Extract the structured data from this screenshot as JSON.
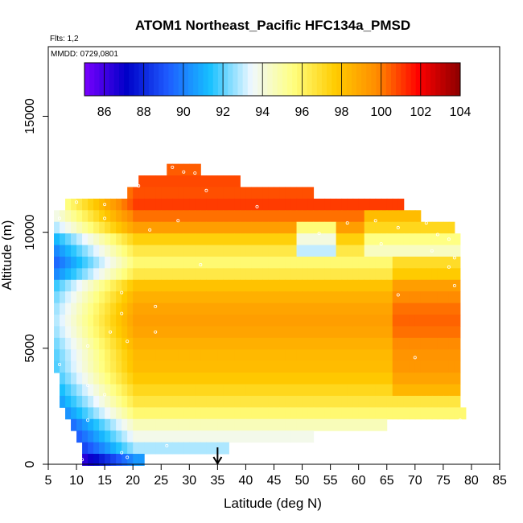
{
  "chart_data": {
    "type": "heatmap",
    "title": "ATOM1 Northeast_Pacific HFC134a_PMSD",
    "flights_note": "Flts: 1,2",
    "date_note": "MMDD: 0729,0801",
    "xlabel": "Latitude (deg N)",
    "ylabel": "Altitude (m)",
    "xlim": [
      5,
      85
    ],
    "ylim": [
      0,
      18000
    ],
    "x_ticks": [
      "5",
      "10",
      "15",
      "20",
      "25",
      "30",
      "35",
      "40",
      "45",
      "50",
      "55",
      "60",
      "65",
      "70",
      "75",
      "80",
      "85"
    ],
    "y_ticks": [
      "0",
      "5000",
      "10000",
      "15000"
    ],
    "colorbar": {
      "min": 85,
      "max": 104,
      "ticks": [
        "86",
        "88",
        "90",
        "92",
        "94",
        "96",
        "98",
        "100",
        "102",
        "104"
      ],
      "colors": [
        "#7a00ff",
        "#0000c8",
        "#1e5cff",
        "#16c0ff",
        "#f0f8ff",
        "#ffff80",
        "#ffcc00",
        "#ff8c00",
        "#ff0000",
        "#8b0000"
      ]
    },
    "arrow_marker_lat": 35,
    "grid": false,
    "field_summary": {
      "description_rows": [
        {
          "alt": 12700,
          "lat_range": [
            26,
            32
          ],
          "value": 100.5
        },
        {
          "alt": 12200,
          "lat_range": [
            21,
            39
          ],
          "value": 100.8
        },
        {
          "alt": 11700,
          "lat_range": [
            19,
            52
          ],
          "value": 100.7
        },
        {
          "alt": 11200,
          "lat_range": [
            8,
            68
          ],
          "value": 101.0
        },
        {
          "alt": 10700,
          "lat_range": [
            6,
            71
          ],
          "value": 100.2
        },
        {
          "alt": 10200,
          "lat_range": [
            6,
            77
          ],
          "value": 99.2
        },
        {
          "alt": 9700,
          "lat_range": [
            6,
            78
          ],
          "value": 97.5
        },
        {
          "alt": 9200,
          "lat_range": [
            6,
            78
          ],
          "value": 96.5
        },
        {
          "alt": 8700,
          "lat_range": [
            6,
            78
          ],
          "value": 95.8
        },
        {
          "alt": 8200,
          "lat_range": [
            6,
            78
          ],
          "value": 96.5
        },
        {
          "alt": 7700,
          "lat_range": [
            6,
            78
          ],
          "value": 98.0
        },
        {
          "alt": 7200,
          "lat_range": [
            6,
            78
          ],
          "value": 98.6
        },
        {
          "alt": 6700,
          "lat_range": [
            6,
            78
          ],
          "value": 99.0
        },
        {
          "alt": 6200,
          "lat_range": [
            6,
            78
          ],
          "value": 99.2
        },
        {
          "alt": 5700,
          "lat_range": [
            6,
            78
          ],
          "value": 99.0
        },
        {
          "alt": 5200,
          "lat_range": [
            6,
            78
          ],
          "value": 98.6
        },
        {
          "alt": 4700,
          "lat_range": [
            6,
            78
          ],
          "value": 98.3
        },
        {
          "alt": 4200,
          "lat_range": [
            6,
            78
          ],
          "value": 98.2
        },
        {
          "alt": 3700,
          "lat_range": [
            7,
            78
          ],
          "value": 97.8
        },
        {
          "alt": 3200,
          "lat_range": [
            7,
            78
          ],
          "value": 97.2
        },
        {
          "alt": 2700,
          "lat_range": [
            7,
            78
          ],
          "value": 96.6
        },
        {
          "alt": 2200,
          "lat_range": [
            8,
            79
          ],
          "value": 95.8
        },
        {
          "alt": 1700,
          "lat_range": [
            9,
            65
          ],
          "value": 94.6
        },
        {
          "alt": 1200,
          "lat_range": [
            10,
            52
          ],
          "value": 93.8
        },
        {
          "alt": 700,
          "lat_range": [
            11,
            37
          ],
          "value": 92.8
        },
        {
          "alt": 200,
          "lat_range": [
            11,
            22
          ],
          "value": 90.5
        }
      ]
    }
  }
}
